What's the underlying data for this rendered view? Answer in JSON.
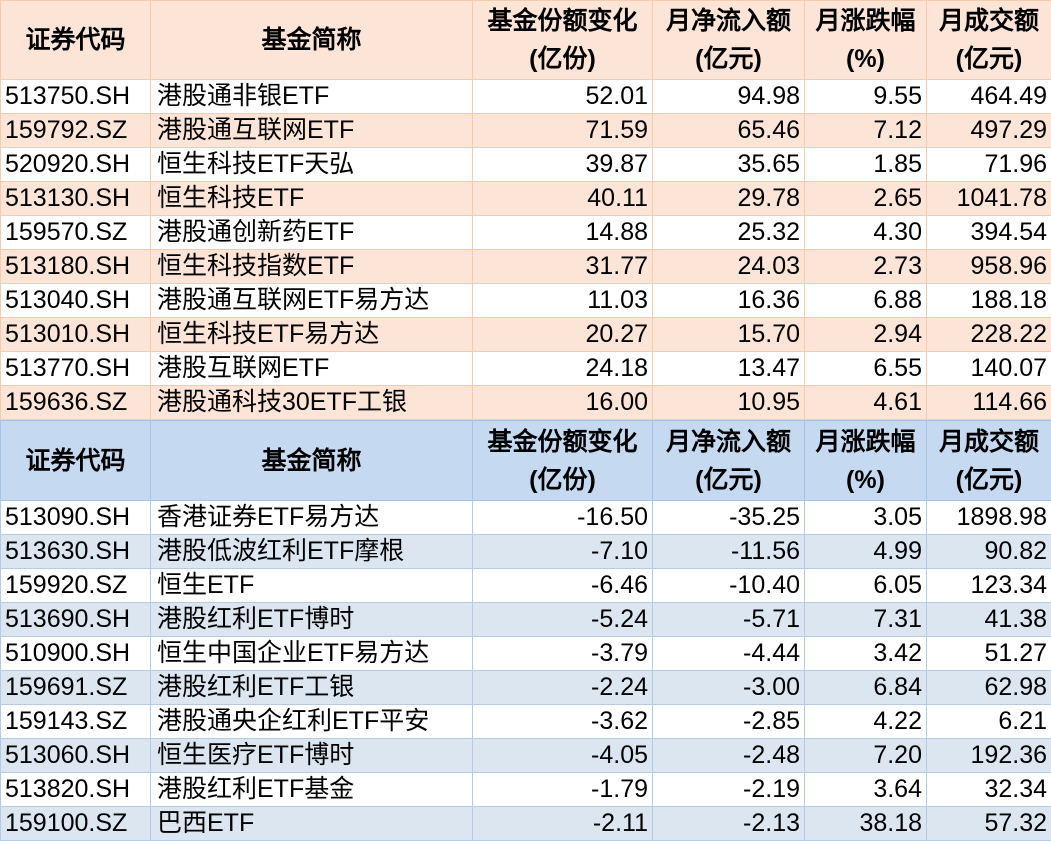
{
  "headers": [
    "证券代码",
    "基金简称",
    "基金份额变化\n(亿份)",
    "月净流入额\n(亿元)",
    "月涨跌幅\n(%)",
    "月成交额\n(亿元)"
  ],
  "colors": {
    "inflow_header": "#fce4d6",
    "outflow_header": "#c5d9f1",
    "outflow_alt": "#dce6f1"
  },
  "inflow_rows": [
    [
      "513750.SH",
      "港股通非银ETF",
      "52.01",
      "94.98",
      "9.55",
      "464.49"
    ],
    [
      "159792.SZ",
      "港股通互联网ETF",
      "71.59",
      "65.46",
      "7.12",
      "497.29"
    ],
    [
      "520920.SH",
      "恒生科技ETF天弘",
      "39.87",
      "35.65",
      "1.85",
      "71.96"
    ],
    [
      "513130.SH",
      "恒生科技ETF",
      "40.11",
      "29.78",
      "2.65",
      "1041.78"
    ],
    [
      "159570.SZ",
      "港股通创新药ETF",
      "14.88",
      "25.32",
      "4.30",
      "394.54"
    ],
    [
      "513180.SH",
      "恒生科技指数ETF",
      "31.77",
      "24.03",
      "2.73",
      "958.96"
    ],
    [
      "513040.SH",
      "港股通互联网ETF易方达",
      "11.03",
      "16.36",
      "6.88",
      "188.18"
    ],
    [
      "513010.SH",
      "恒生科技ETF易方达",
      "20.27",
      "15.70",
      "2.94",
      "228.22"
    ],
    [
      "513770.SH",
      "港股互联网ETF",
      "24.18",
      "13.47",
      "6.55",
      "140.07"
    ],
    [
      "159636.SZ",
      "港股通科技30ETF工银",
      "16.00",
      "10.95",
      "4.61",
      "114.66"
    ]
  ],
  "outflow_rows": [
    [
      "513090.SH",
      "香港证券ETF易方达",
      "-16.50",
      "-35.25",
      "3.05",
      "1898.98"
    ],
    [
      "513630.SH",
      "港股低波红利ETF摩根",
      "-7.10",
      "-11.56",
      "4.99",
      "90.82"
    ],
    [
      "159920.SZ",
      "恒生ETF",
      "-6.46",
      "-10.40",
      "6.05",
      "123.34"
    ],
    [
      "513690.SH",
      "港股红利ETF博时",
      "-5.24",
      "-5.71",
      "7.31",
      "41.38"
    ],
    [
      "510900.SH",
      "恒生中国企业ETF易方达",
      "-3.79",
      "-4.44",
      "3.42",
      "51.27"
    ],
    [
      "159691.SZ",
      "港股红利ETF工银",
      "-2.24",
      "-3.00",
      "6.84",
      "62.98"
    ],
    [
      "159143.SZ",
      "港股通央企红利ETF平安",
      "-3.62",
      "-2.85",
      "4.22",
      "6.21"
    ],
    [
      "513060.SH",
      "恒生医疗ETF博时",
      "-4.05",
      "-2.48",
      "7.20",
      "192.36"
    ],
    [
      "513820.SH",
      "港股红利ETF基金",
      "-1.79",
      "-2.19",
      "3.64",
      "32.34"
    ],
    [
      "159100.SZ",
      "巴西ETF",
      "-2.11",
      "-2.13",
      "38.18",
      "57.32"
    ]
  ]
}
